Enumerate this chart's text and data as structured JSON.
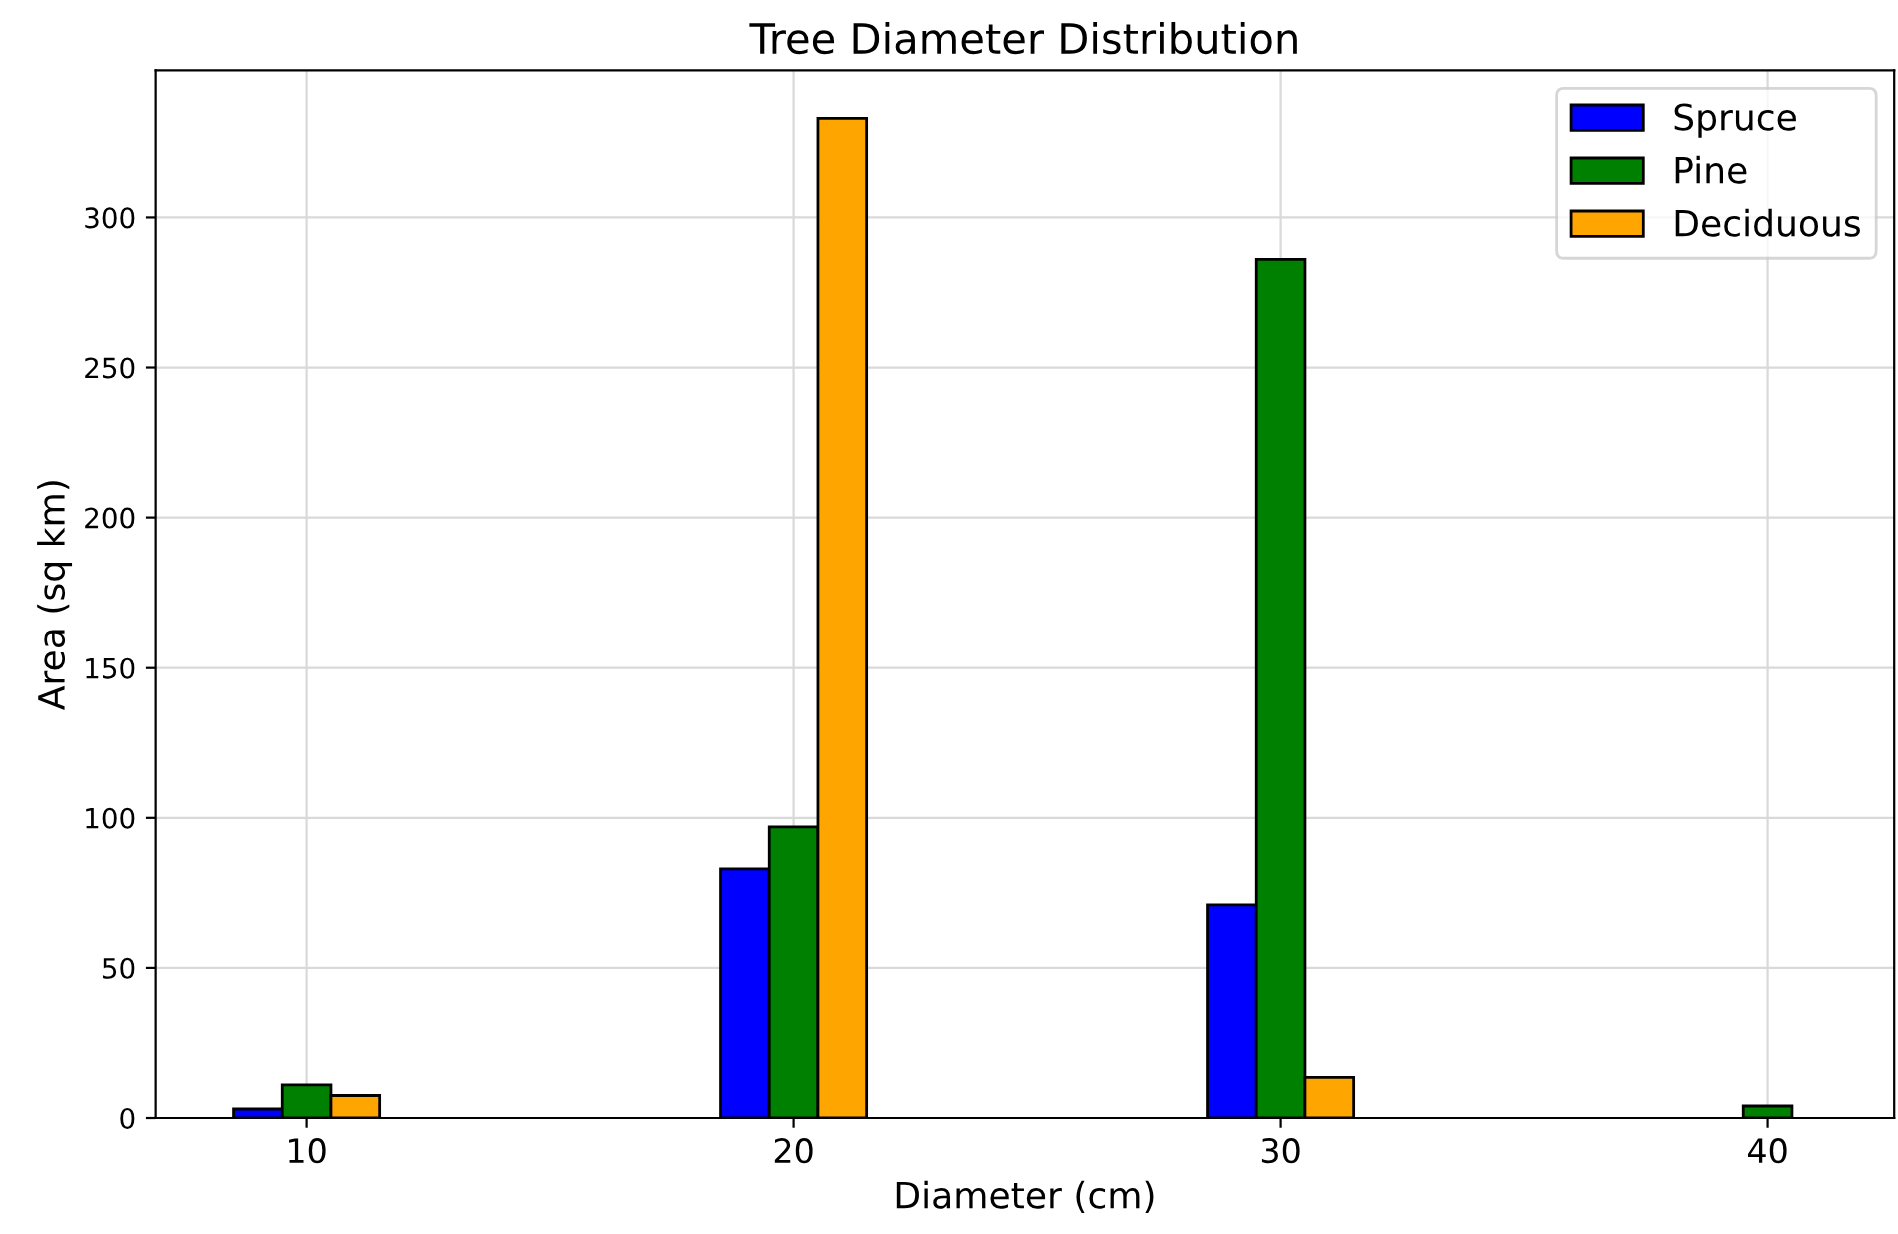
{
  "chart_data": {
    "type": "bar",
    "title": "Tree Diameter Distribution",
    "xlabel": "Diameter (cm)",
    "ylabel": "Area (sq km)",
    "x": [
      10,
      20,
      30,
      40
    ],
    "series": [
      {
        "name": "Spruce",
        "color": "#0000ff",
        "values": [
          3,
          83,
          71,
          null
        ]
      },
      {
        "name": "Pine",
        "color": "#008000",
        "values": [
          11,
          97,
          286,
          4
        ]
      },
      {
        "name": "Deciduous",
        "color": "#ffa500",
        "values": [
          7.5,
          333,
          13.5,
          null
        ]
      }
    ],
    "xlim": [
      6.9,
      42.6
    ],
    "xticks": [
      10,
      20,
      30,
      40
    ],
    "ylim": [
      0,
      349
    ],
    "yticks": [
      0,
      50,
      100,
      150,
      200,
      250,
      300
    ],
    "grid": true,
    "legend": "top right"
  }
}
